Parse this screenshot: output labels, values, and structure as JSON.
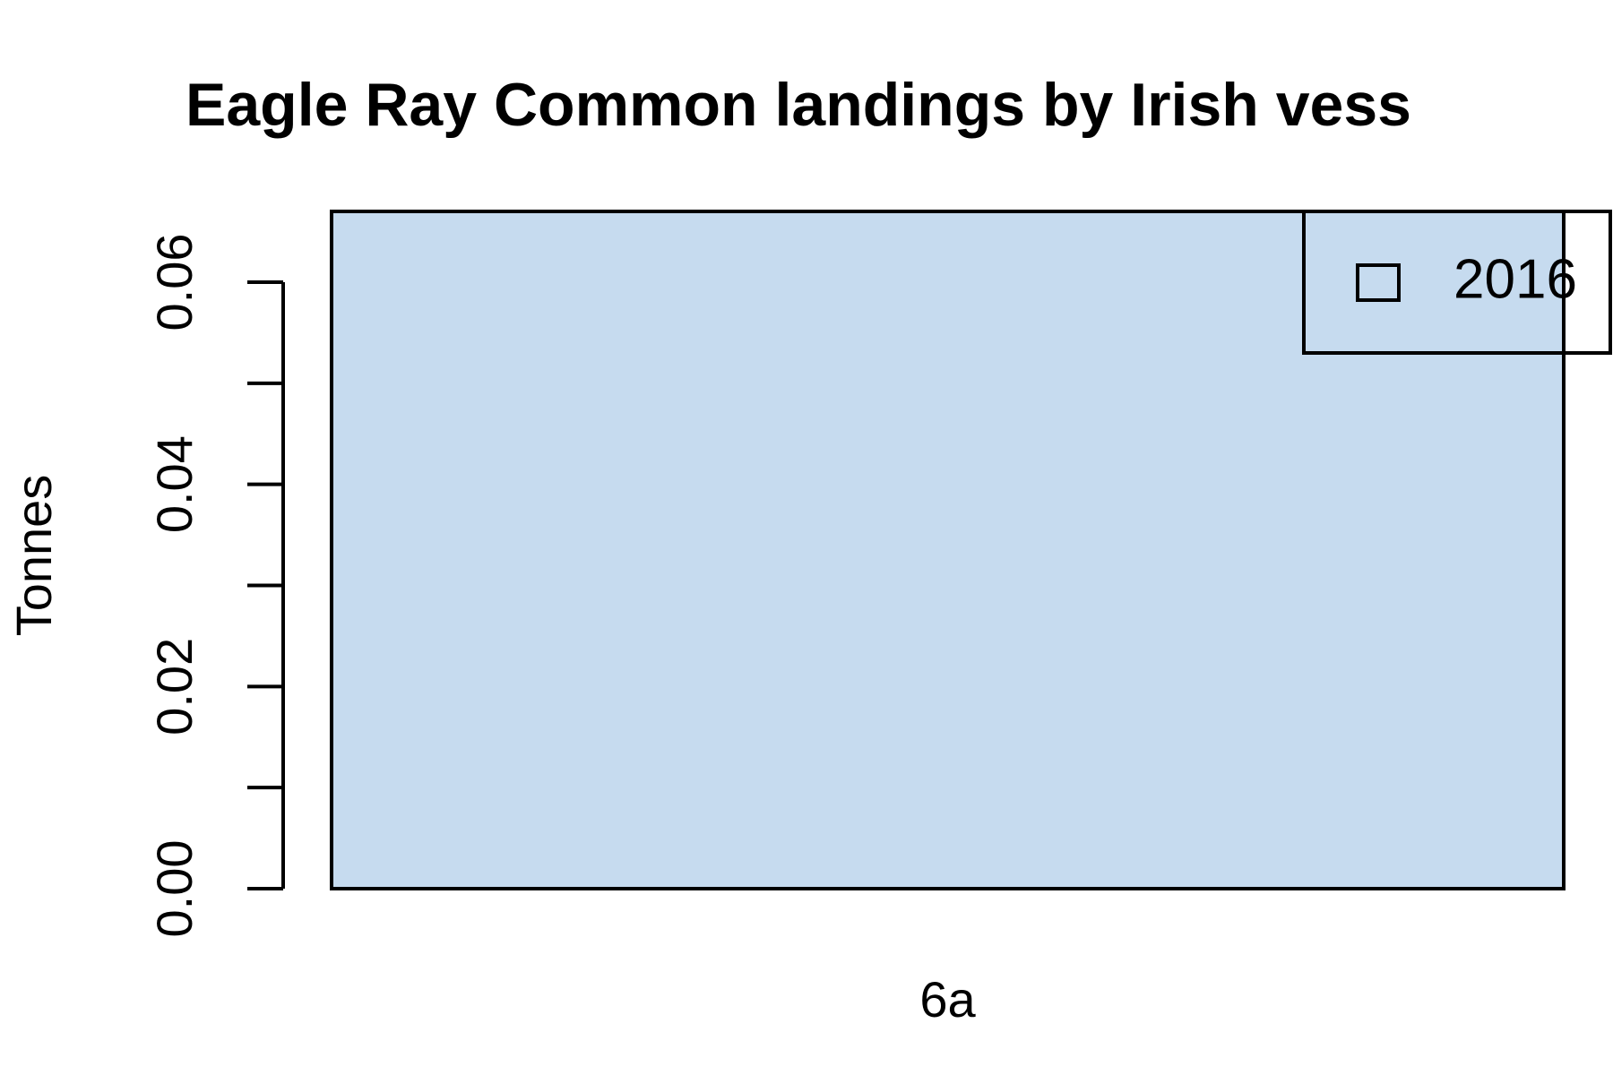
{
  "chart_data": {
    "type": "bar",
    "title": "Eagle Ray Common landings by Irish vess",
    "y_label": "Tonnes",
    "categories": [
      "6a"
    ],
    "series": [
      {
        "name": "2016",
        "color": "#c6dbef",
        "values": [
          0.067
        ]
      }
    ],
    "ylim": [
      0,
      0.067
    ],
    "yticks": [
      {
        "value": 0,
        "label": "0.00"
      },
      {
        "value": 0.01,
        "label": null
      },
      {
        "value": 0.02,
        "label": "0.02"
      },
      {
        "value": 0.03,
        "label": null
      },
      {
        "value": 0.04,
        "label": "0.04"
      },
      {
        "value": 0.05,
        "label": null
      },
      {
        "value": 0.06,
        "label": "0.06"
      }
    ],
    "legend": "topright",
    "grid": false
  }
}
